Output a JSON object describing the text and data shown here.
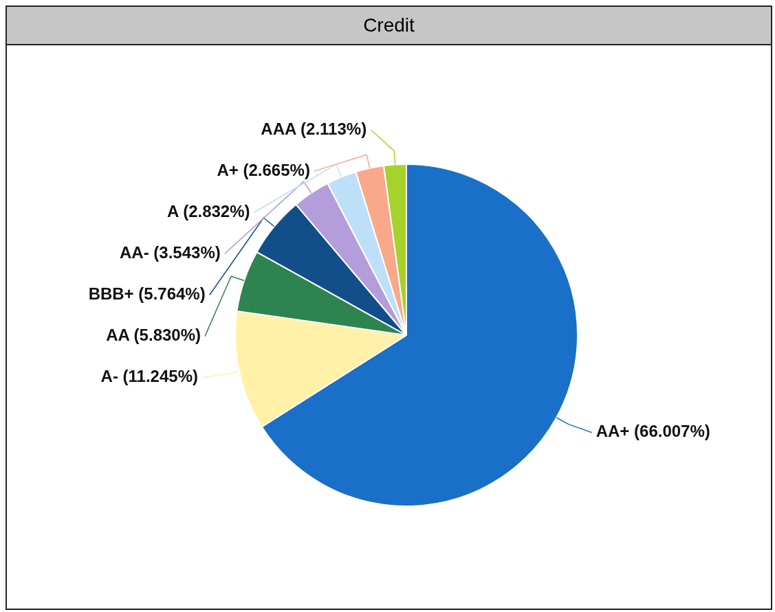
{
  "chart_data": {
    "type": "pie",
    "title": "Credit",
    "categories": [
      "AA+",
      "A-",
      "AA",
      "BBB+",
      "AA-",
      "A",
      "A+",
      "AAA"
    ],
    "values": [
      66.007,
      11.245,
      5.83,
      5.764,
      3.543,
      2.832,
      2.665,
      2.113
    ],
    "value_labels": [
      "(66.007%)",
      "(11.245%)",
      "(5.830%)",
      "(5.764%)",
      "(3.543%)",
      "(2.832%)",
      "(2.665%)",
      "(2.113%)"
    ],
    "colors": [
      "#1a6fc9",
      "#fff2a8",
      "#2e8450",
      "#124f8a",
      "#b39ddb",
      "#bde0f8",
      "#f9a98a",
      "#a6d22b"
    ],
    "legend": false
  }
}
